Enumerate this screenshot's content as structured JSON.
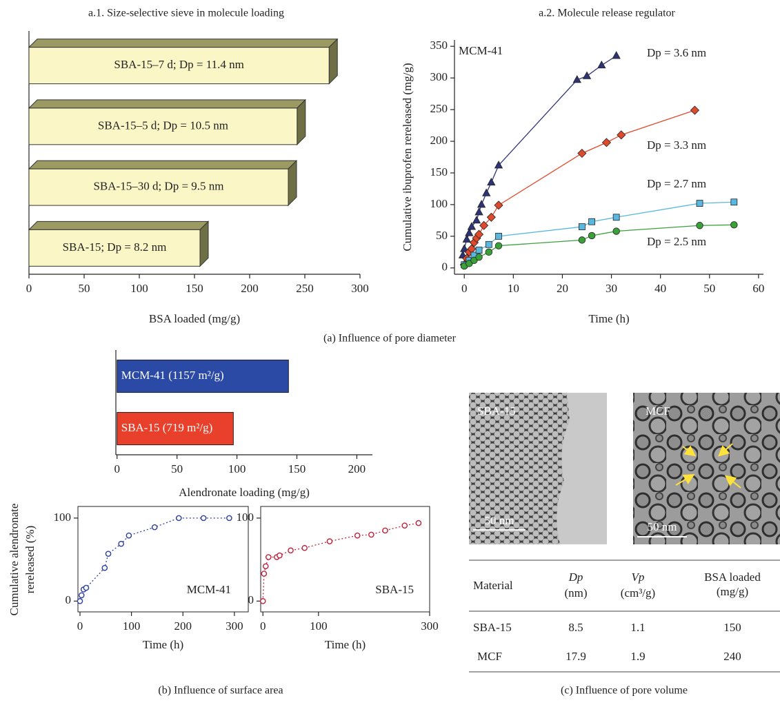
{
  "chart_data": [
    {
      "type": "bar",
      "style": "3d",
      "title": "a.1. Size-selective sieve in molecule loading",
      "categories": [
        "SBA-15–7 d; Dp = 11.4 nm",
        "SBA-15–5 d; Dp = 10.5 nm",
        "SBA-15–30 d; Dp = 9.5 nm",
        "SBA-15; Dp = 8.2 nm"
      ],
      "values": [
        272,
        243,
        235,
        155
      ],
      "color": "#faf6c6",
      "xlim": [
        0,
        300
      ],
      "xticks": [
        0,
        50,
        100,
        150,
        200,
        250,
        300
      ],
      "xlabel": "BSA loaded (mg/g)"
    },
    {
      "type": "line",
      "title": "a.2. Molecule release regulator",
      "annotation": "MCM-41",
      "series": [
        {
          "name": "Dp = 3.6 nm",
          "color": "#2d3375",
          "marker": "triangle",
          "x": [
            -0.3,
            0,
            0.5,
            1,
            1.5,
            2.5,
            3,
            3.5,
            4.5,
            5.5,
            7,
            23,
            25,
            28,
            31
          ],
          "values": [
            20,
            30,
            45,
            55,
            65,
            75,
            88,
            100,
            118,
            135,
            162,
            297,
            303,
            320,
            335
          ]
        },
        {
          "name": "Dp = 3.3 nm",
          "color": "#e04a2c",
          "marker": "diamond",
          "x": [
            0,
            0.5,
            1,
            1.5,
            2,
            2.5,
            3,
            4,
            5.5,
            7,
            24,
            29,
            32,
            47
          ],
          "values": [
            5,
            15,
            25,
            30,
            40,
            47,
            53,
            67,
            80,
            99,
            181,
            198,
            210,
            249
          ]
        },
        {
          "name": "Dp = 2.7 nm",
          "color": "#5ab8e0",
          "marker": "square",
          "x": [
            0,
            1,
            2,
            3,
            5,
            7,
            24,
            26,
            31,
            48,
            55
          ],
          "values": [
            5,
            12,
            20,
            28,
            37,
            50,
            65,
            73,
            80,
            102,
            104
          ]
        },
        {
          "name": "Dp = 2.5 nm",
          "color": "#3aa03a",
          "marker": "circle",
          "x": [
            0,
            1,
            2,
            3,
            5,
            7,
            24,
            26,
            31,
            48,
            55
          ],
          "values": [
            3,
            7,
            12,
            17,
            25,
            35,
            44,
            51,
            58,
            67,
            68
          ]
        }
      ],
      "xlim": [
        -2,
        61
      ],
      "xticks": [
        0,
        10,
        20,
        30,
        40,
        50,
        60
      ],
      "ylim": [
        -10,
        360
      ],
      "yticks": [
        0,
        50,
        100,
        150,
        200,
        250,
        300,
        350
      ],
      "xlabel": "Time (h)",
      "ylabel": "Cumulative ibuprofen rereleased (mg/g)"
    },
    {
      "type": "bar",
      "style": "flat",
      "categories": [
        "MCM-41 (1157 m²/g)",
        "SBA-15 (719 m²/g)"
      ],
      "values": [
        143,
        97
      ],
      "colors": [
        "#2b4aa6",
        "#e8402a"
      ],
      "xlim": [
        -1,
        213
      ],
      "xticks": [
        0,
        50,
        100,
        150,
        200
      ],
      "xlabel": "Alendronate loading (mg/g)"
    },
    {
      "type": "scatter",
      "annotation": "MCM-41",
      "color": "#2b3fa0",
      "x": [
        0,
        3,
        7,
        12,
        48,
        55,
        80,
        95,
        145,
        192,
        240,
        290
      ],
      "values": [
        0,
        7,
        14,
        16,
        40,
        57,
        69,
        79,
        89,
        100,
        100,
        100
      ],
      "xlim": [
        -4,
        327
      ],
      "xticks": [
        0,
        100,
        200,
        300
      ],
      "ylim": [
        -13,
        114
      ],
      "yticks": [
        0,
        100
      ],
      "xlabel": "Time (h)",
      "ylabel": [
        "Cumulative alendronate",
        "rereleased (%)"
      ]
    },
    {
      "type": "scatter",
      "annotation": "SBA-15",
      "color": "#c0203a",
      "x": [
        0,
        2,
        5,
        10,
        25,
        30,
        50,
        75,
        120,
        170,
        195,
        220,
        255,
        280
      ],
      "values": [
        0,
        33,
        42,
        53,
        53,
        55,
        61,
        64,
        72,
        79,
        80,
        85,
        91,
        94
      ],
      "xlim": [
        -4,
        300
      ],
      "xticks": [
        0,
        100,
        300
      ],
      "ylim": [
        -13,
        114
      ],
      "yticks": [
        0,
        100
      ],
      "xlabel": "Time (h)"
    }
  ],
  "figure": {
    "captions": [
      "(a)  Influence of pore diameter",
      "(b)  Influence of surface area",
      "(c)  Influence of pore volume"
    ],
    "images": [
      {
        "label": "SBA-15",
        "scale": "50 nm"
      },
      {
        "label": "MCF",
        "scale": "50 nm"
      }
    ],
    "table": {
      "header": [
        [
          "Material"
        ],
        [
          "Dp",
          "(nm)"
        ],
        [
          "Vp",
          "(cm³/g)"
        ],
        [
          "BSA loaded",
          "(mg/g)"
        ]
      ],
      "rows": [
        [
          "SBA-15",
          8.5,
          1.1,
          150
        ],
        [
          "MCF",
          17.9,
          1.9,
          240
        ]
      ]
    }
  }
}
